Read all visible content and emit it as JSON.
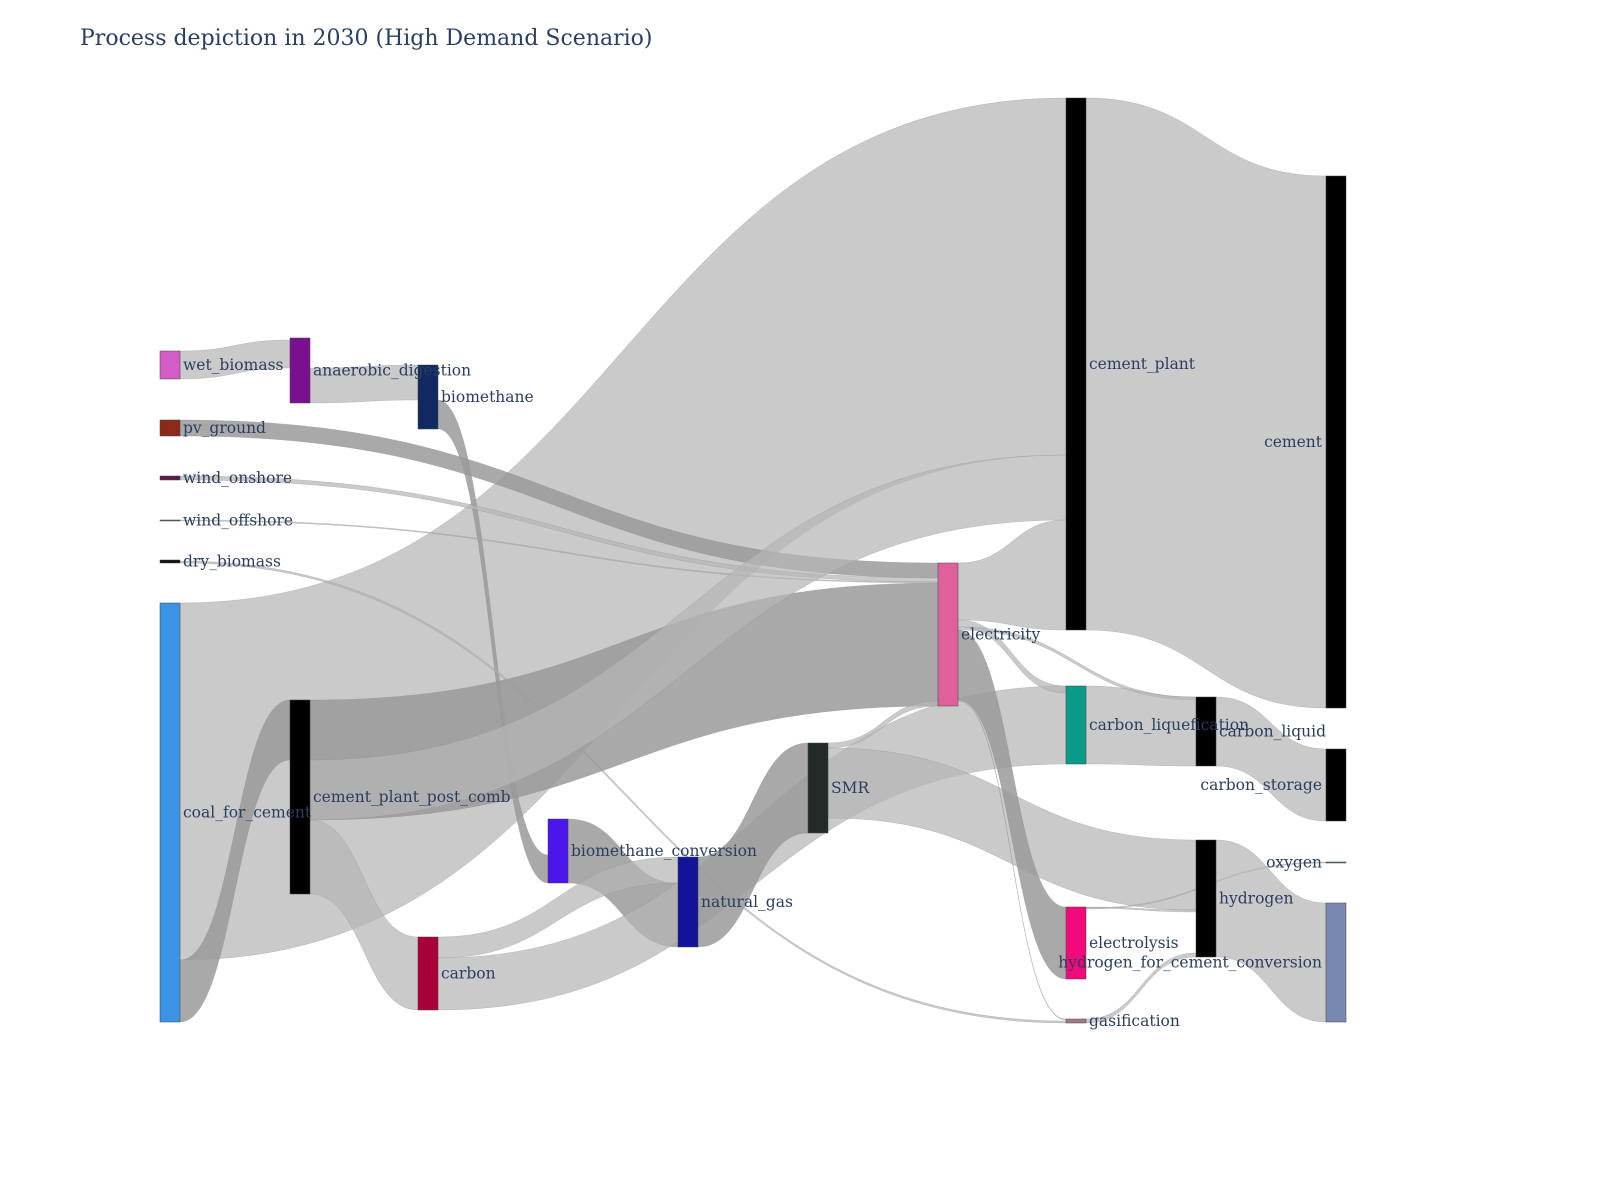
{
  "title": "Process depiction in 2030 (High Demand Scenario)",
  "colors": {
    "link": "#b5b5b5",
    "link_dark": "#9a9a9a",
    "label": "#2a3f5f"
  },
  "nodes": [
    {
      "id": "wet_biomass",
      "label": "wet_biomass",
      "color": "#d35cc8"
    },
    {
      "id": "pv_ground",
      "label": "pv_ground",
      "color": "#8b2a1a"
    },
    {
      "id": "wind_onshore",
      "label": "wind_onshore",
      "color": "#5a1a4a"
    },
    {
      "id": "wind_offshore",
      "label": "wind_offshore",
      "color": "#6b6b7a"
    },
    {
      "id": "dry_biomass",
      "label": "dry_biomass",
      "color": "#111111"
    },
    {
      "id": "coal_for_cement",
      "label": "coal_for_cement",
      "color": "#3a93e4"
    },
    {
      "id": "anaerobic_digestion",
      "label": "anaerobic_digestion",
      "color": "#7a1090"
    },
    {
      "id": "cement_plant_post_comb",
      "label": "cement_plant_post_comb",
      "color": "#000000"
    },
    {
      "id": "biomethane",
      "label": "biomethane",
      "color": "#0f2a60"
    },
    {
      "id": "carbon",
      "label": "carbon",
      "color": "#a80038"
    },
    {
      "id": "biomethane_conversion",
      "label": "biomethane_conversion",
      "color": "#4b16ec"
    },
    {
      "id": "natural_gas",
      "label": "natural_gas",
      "color": "#12139a"
    },
    {
      "id": "SMR",
      "label": "SMR",
      "color": "#232a2a"
    },
    {
      "id": "electricity",
      "label": "electricity",
      "color": "#e0609c"
    },
    {
      "id": "cement_plant",
      "label": "cement_plant",
      "color": "#000000"
    },
    {
      "id": "carbon_liquefication",
      "label": "carbon_liquefication",
      "color": "#0a9a8a"
    },
    {
      "id": "electrolysis",
      "label": "electrolysis",
      "color": "#f20a7a"
    },
    {
      "id": "gasification",
      "label": "gasification",
      "color": "#a8788a"
    },
    {
      "id": "carbon_liquid",
      "label": "carbon_liquid",
      "color": "#000000"
    },
    {
      "id": "hydrogen",
      "label": "hydrogen",
      "color": "#000000"
    },
    {
      "id": "cement",
      "label": "cement",
      "color": "#000000"
    },
    {
      "id": "carbon_storage",
      "label": "carbon_storage",
      "color": "#000000"
    },
    {
      "id": "oxygen",
      "label": "oxygen",
      "color": "#4a7a5a"
    },
    {
      "id": "hydrogen_for_cement_conversion",
      "label": "hydrogen_for_cement_conversion",
      "color": "#7888b0"
    }
  ],
  "links": [
    {
      "source": "coal_for_cement",
      "target": "cement_plant"
    },
    {
      "source": "coal_for_cement",
      "target": "cement_plant_post_comb"
    },
    {
      "source": "hydrogen_for_cement_conversion",
      "target": "coal_for_cement"
    },
    {
      "source": "wet_biomass",
      "target": "anaerobic_digestion"
    },
    {
      "source": "anaerobic_digestion",
      "target": "biomethane"
    },
    {
      "source": "biomethane",
      "target": "biomethane_conversion"
    },
    {
      "source": "biomethane_conversion",
      "target": "natural_gas"
    },
    {
      "source": "pv_ground",
      "target": "electricity"
    },
    {
      "source": "wind_onshore",
      "target": "electricity"
    },
    {
      "source": "wind_offshore",
      "target": "electricity"
    },
    {
      "source": "dry_biomass",
      "target": "gasification"
    },
    {
      "source": "cement_plant_post_comb",
      "target": "electricity"
    },
    {
      "source": "cement_plant_post_comb",
      "target": "cement_plant"
    },
    {
      "source": "cement_plant_post_comb",
      "target": "carbon"
    },
    {
      "source": "carbon",
      "target": "natural_gas"
    },
    {
      "source": "carbon",
      "target": "carbon_liquefication"
    },
    {
      "source": "natural_gas",
      "target": "SMR"
    },
    {
      "source": "SMR",
      "target": "electricity"
    },
    {
      "source": "SMR",
      "target": "hydrogen"
    },
    {
      "source": "electricity",
      "target": "cement_plant"
    },
    {
      "source": "electricity",
      "target": "carbon_liquefication"
    },
    {
      "source": "electricity",
      "target": "carbon_liquid"
    },
    {
      "source": "electricity",
      "target": "electrolysis"
    },
    {
      "source": "electricity",
      "target": "gasification"
    },
    {
      "source": "cement_plant",
      "target": "cement"
    },
    {
      "source": "carbon_liquefication",
      "target": "carbon_liquid"
    },
    {
      "source": "carbon_liquid",
      "target": "carbon_storage"
    },
    {
      "source": "electrolysis",
      "target": "hydrogen"
    },
    {
      "source": "electrolysis",
      "target": "oxygen"
    },
    {
      "source": "gasification",
      "target": "hydrogen"
    },
    {
      "source": "hydrogen",
      "target": "hydrogen_for_cement_conversion"
    }
  ]
}
